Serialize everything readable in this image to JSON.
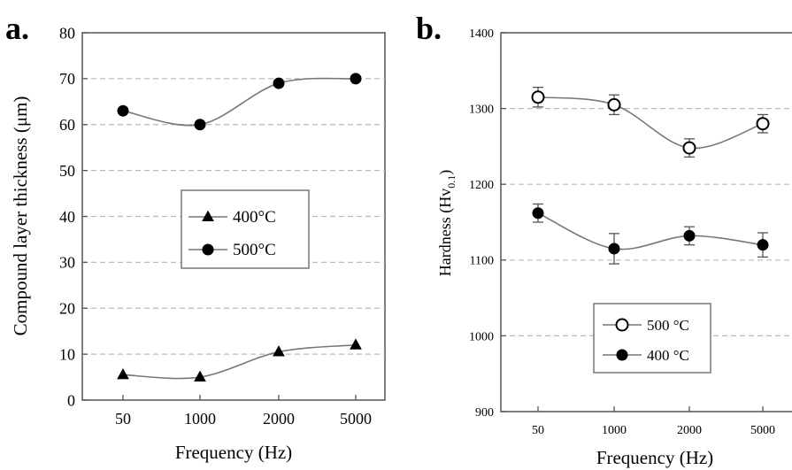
{
  "chart_data": [
    {
      "panel_label": "a.",
      "type": "line",
      "categories": [
        "50",
        "1000",
        "2000",
        "5000"
      ],
      "xlabel": "Frequency (Hz)",
      "ylabel": "Compound layer thickness (μm)",
      "ylim": [
        0,
        80
      ],
      "yticks": [
        "0",
        "10",
        "20",
        "30",
        "40",
        "50",
        "60",
        "70",
        "80"
      ],
      "grid": "horizontal dashed",
      "legend_position": "center",
      "series": [
        {
          "name": "400°C",
          "marker": "triangle-filled",
          "values": [
            5.5,
            5,
            10.5,
            12
          ]
        },
        {
          "name": "500°C",
          "marker": "circle-filled",
          "values": [
            63,
            60,
            69,
            70
          ]
        }
      ]
    },
    {
      "panel_label": "b.",
      "type": "line",
      "categories": [
        "50",
        "1000",
        "2000",
        "5000"
      ],
      "xlabel": "Frequency (Hz)",
      "ylabel_main": "Hardness (Hv",
      "ylabel_sub": "0.1",
      "ylabel_close": ")",
      "ylim": [
        900,
        1400
      ],
      "yticks": [
        "900",
        "1000",
        "1100",
        "1200",
        "1300",
        "1400"
      ],
      "grid": "horizontal dashed",
      "legend_position": "bottom-center",
      "series": [
        {
          "name": "500 °C",
          "marker": "circle-open",
          "values": [
            1315,
            1305,
            1248,
            1280
          ],
          "errors": [
            13,
            13,
            12,
            12
          ]
        },
        {
          "name": "400 °C",
          "marker": "circle-filled",
          "values": [
            1162,
            1115,
            1132,
            1120
          ],
          "errors": [
            12,
            20,
            12,
            16
          ]
        }
      ]
    }
  ]
}
